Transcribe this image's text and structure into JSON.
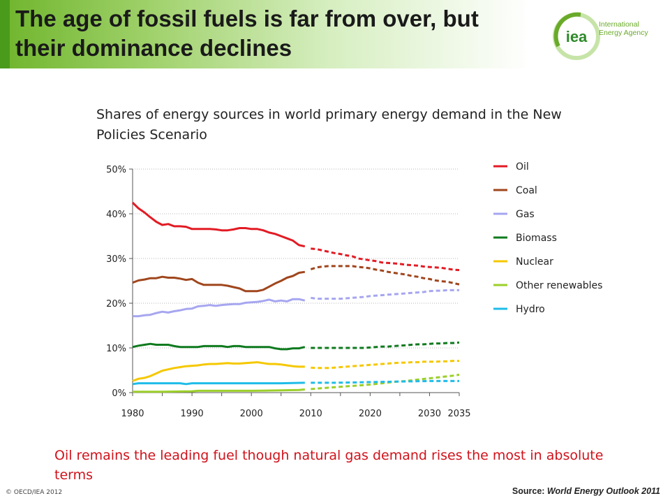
{
  "title": "The age of fossil fuels is far from over, but their dominance declines",
  "logo": {
    "mark": "iea",
    "name_lines": [
      "International",
      "Energy Agency"
    ],
    "icon": "iea-logo"
  },
  "caption": "Oil remains the leading fuel though natural gas demand rises the most in absolute terms",
  "footer": {
    "copyright": "© OECD/IEA 2012",
    "source_label": "Source:",
    "source_title": "World Energy Outlook 2011"
  },
  "chart_data": {
    "type": "line",
    "title": "Shares of energy sources in world primary energy demand in the New Policies Scenario",
    "xlabel": "",
    "ylabel": "",
    "xlim": [
      1980,
      2035
    ],
    "ylim": [
      0,
      50
    ],
    "x_ticks": [
      "1980",
      "1990",
      "2000",
      "2010",
      "2020",
      "2030",
      "2035"
    ],
    "y_ticks": [
      "0%",
      "10%",
      "20%",
      "30%",
      "40%",
      "50%"
    ],
    "gridlines": "horizontal-dotted",
    "legend_position": "right",
    "historical_end": 2009,
    "style": "solid up to 2009, dashed projection to 2035",
    "series": [
      {
        "name": "Oil",
        "color": "#e21b24",
        "x": [
          1980,
          1981,
          1982,
          1983,
          1984,
          1985,
          1986,
          1987,
          1988,
          1989,
          1990,
          1991,
          1992,
          1993,
          1994,
          1995,
          1996,
          1997,
          1998,
          1999,
          2000,
          2001,
          2002,
          2003,
          2004,
          2005,
          2006,
          2007,
          2008,
          2009,
          2010,
          2011,
          2012,
          2013,
          2014,
          2015,
          2016,
          2017,
          2018,
          2019,
          2020,
          2021,
          2022,
          2023,
          2024,
          2025,
          2026,
          2027,
          2028,
          2029,
          2030,
          2031,
          2032,
          2033,
          2034,
          2035
        ],
        "values": [
          42.5,
          41.2,
          40.3,
          39.2,
          38.2,
          37.5,
          37.7,
          37.2,
          37.2,
          37.1,
          36.6,
          36.6,
          36.6,
          36.6,
          36.5,
          36.3,
          36.3,
          36.5,
          36.8,
          36.8,
          36.6,
          36.6,
          36.3,
          35.8,
          35.5,
          35.0,
          34.5,
          34.0,
          33.0,
          32.7,
          32.2,
          32.1,
          31.8,
          31.5,
          31.2,
          31.0,
          30.7,
          30.5,
          30.0,
          29.8,
          29.6,
          29.4,
          29.1,
          29.0,
          28.9,
          28.8,
          28.6,
          28.5,
          28.4,
          28.2,
          28.1,
          28.0,
          27.9,
          27.7,
          27.5,
          27.4
        ]
      },
      {
        "name": "Coal",
        "color": "#a0461d",
        "x": [
          1980,
          1981,
          1982,
          1983,
          1984,
          1985,
          1986,
          1987,
          1988,
          1989,
          1990,
          1991,
          1992,
          1993,
          1994,
          1995,
          1996,
          1997,
          1998,
          1999,
          2000,
          2001,
          2002,
          2003,
          2004,
          2005,
          2006,
          2007,
          2008,
          2009,
          2010,
          2011,
          2012,
          2013,
          2014,
          2015,
          2016,
          2017,
          2018,
          2019,
          2020,
          2021,
          2022,
          2023,
          2024,
          2025,
          2026,
          2027,
          2028,
          2029,
          2030,
          2031,
          2032,
          2033,
          2034,
          2035
        ],
        "values": [
          24.6,
          25.1,
          25.3,
          25.6,
          25.6,
          25.9,
          25.7,
          25.7,
          25.5,
          25.2,
          25.4,
          24.6,
          24.1,
          24.1,
          24.1,
          24.1,
          23.9,
          23.6,
          23.3,
          22.7,
          22.7,
          22.7,
          23.0,
          23.7,
          24.4,
          25.0,
          25.7,
          26.1,
          26.8,
          27.0,
          27.6,
          28.0,
          28.2,
          28.3,
          28.3,
          28.3,
          28.3,
          28.3,
          28.1,
          28.0,
          27.8,
          27.5,
          27.3,
          27.0,
          26.8,
          26.6,
          26.4,
          26.1,
          25.9,
          25.6,
          25.4,
          25.1,
          24.9,
          24.8,
          24.5,
          24.2
        ]
      },
      {
        "name": "Gas",
        "color": "#a6a6f0",
        "x": [
          1980,
          1981,
          1982,
          1983,
          1984,
          1985,
          1986,
          1987,
          1988,
          1989,
          1990,
          1991,
          1992,
          1993,
          1994,
          1995,
          1996,
          1997,
          1998,
          1999,
          2000,
          2001,
          2002,
          2003,
          2004,
          2005,
          2006,
          2007,
          2008,
          2009,
          2010,
          2011,
          2012,
          2013,
          2014,
          2015,
          2016,
          2017,
          2018,
          2019,
          2020,
          2021,
          2022,
          2023,
          2024,
          2025,
          2026,
          2027,
          2028,
          2029,
          2030,
          2031,
          2032,
          2033,
          2034,
          2035
        ],
        "values": [
          17.1,
          17.1,
          17.3,
          17.4,
          17.8,
          18.1,
          17.9,
          18.2,
          18.4,
          18.7,
          18.8,
          19.3,
          19.4,
          19.6,
          19.4,
          19.6,
          19.7,
          19.8,
          19.8,
          20.1,
          20.2,
          20.3,
          20.5,
          20.8,
          20.4,
          20.6,
          20.4,
          20.9,
          20.9,
          20.6,
          21.2,
          21.0,
          21.0,
          21.0,
          21.0,
          21.0,
          21.1,
          21.2,
          21.3,
          21.4,
          21.6,
          21.7,
          21.8,
          21.9,
          22.0,
          22.1,
          22.2,
          22.3,
          22.4,
          22.5,
          22.7,
          22.8,
          22.8,
          22.9,
          22.9,
          22.9
        ]
      },
      {
        "name": "Biomass",
        "color": "#0e7a1e",
        "x": [
          1980,
          1981,
          1982,
          1983,
          1984,
          1985,
          1986,
          1987,
          1988,
          1989,
          1990,
          1991,
          1992,
          1993,
          1994,
          1995,
          1996,
          1997,
          1998,
          1999,
          2000,
          2001,
          2002,
          2003,
          2004,
          2005,
          2006,
          2007,
          2008,
          2009,
          2010,
          2011,
          2012,
          2013,
          2014,
          2015,
          2016,
          2017,
          2018,
          2019,
          2020,
          2021,
          2022,
          2023,
          2024,
          2025,
          2026,
          2027,
          2028,
          2029,
          2030,
          2031,
          2032,
          2033,
          2034,
          2035
        ],
        "values": [
          10.2,
          10.5,
          10.7,
          10.9,
          10.7,
          10.7,
          10.7,
          10.4,
          10.2,
          10.2,
          10.2,
          10.2,
          10.4,
          10.4,
          10.4,
          10.4,
          10.2,
          10.4,
          10.4,
          10.2,
          10.2,
          10.2,
          10.2,
          10.2,
          9.9,
          9.7,
          9.7,
          9.9,
          9.9,
          10.2,
          10.0,
          10.0,
          10.0,
          10.0,
          10.0,
          10.0,
          10.0,
          10.0,
          10.0,
          10.0,
          10.1,
          10.2,
          10.3,
          10.3,
          10.4,
          10.5,
          10.6,
          10.7,
          10.8,
          10.8,
          10.9,
          11.0,
          11.0,
          11.1,
          11.1,
          11.2
        ]
      },
      {
        "name": "Nuclear",
        "color": "#f5c800",
        "x": [
          1980,
          1981,
          1982,
          1983,
          1984,
          1985,
          1986,
          1987,
          1988,
          1989,
          1990,
          1991,
          1992,
          1993,
          1994,
          1995,
          1996,
          1997,
          1998,
          1999,
          2000,
          2001,
          2002,
          2003,
          2004,
          2005,
          2006,
          2007,
          2008,
          2009,
          2010,
          2011,
          2012,
          2013,
          2014,
          2015,
          2016,
          2017,
          2018,
          2019,
          2020,
          2021,
          2022,
          2023,
          2024,
          2025,
          2026,
          2027,
          2028,
          2029,
          2030,
          2031,
          2032,
          2033,
          2034,
          2035
        ],
        "values": [
          2.6,
          3.1,
          3.3,
          3.7,
          4.3,
          4.9,
          5.2,
          5.5,
          5.7,
          5.9,
          6.0,
          6.1,
          6.3,
          6.4,
          6.4,
          6.5,
          6.6,
          6.5,
          6.5,
          6.6,
          6.7,
          6.8,
          6.6,
          6.4,
          6.4,
          6.3,
          6.1,
          5.9,
          5.8,
          5.8,
          5.6,
          5.5,
          5.5,
          5.5,
          5.6,
          5.7,
          5.8,
          5.9,
          6.0,
          6.1,
          6.2,
          6.3,
          6.4,
          6.5,
          6.6,
          6.7,
          6.7,
          6.8,
          6.8,
          6.9,
          6.9,
          6.9,
          7.0,
          7.0,
          7.1,
          7.1
        ]
      },
      {
        "name": "Other renewables",
        "color": "#9ccf2a",
        "x": [
          1980,
          1985,
          1990,
          1991,
          1995,
          2000,
          2005,
          2008,
          2009,
          2010,
          2012,
          2014,
          2016,
          2018,
          2020,
          2022,
          2024,
          2026,
          2028,
          2030,
          2032,
          2034,
          2035
        ],
        "values": [
          0.2,
          0.2,
          0.3,
          0.4,
          0.4,
          0.4,
          0.5,
          0.6,
          0.7,
          0.8,
          1.0,
          1.2,
          1.4,
          1.6,
          1.8,
          2.1,
          2.4,
          2.6,
          2.9,
          3.2,
          3.5,
          3.8,
          4.0
        ]
      },
      {
        "name": "Hydro",
        "color": "#1fbce8",
        "x": [
          1980,
          1981,
          1985,
          1988,
          1989,
          1990,
          1995,
          2000,
          2005,
          2009,
          2010,
          2014,
          2018,
          2022,
          2026,
          2030,
          2035
        ],
        "values": [
          1.9,
          2.1,
          2.1,
          2.1,
          1.9,
          2.1,
          2.1,
          2.1,
          2.1,
          2.2,
          2.2,
          2.2,
          2.3,
          2.4,
          2.5,
          2.6,
          2.6
        ]
      }
    ]
  }
}
